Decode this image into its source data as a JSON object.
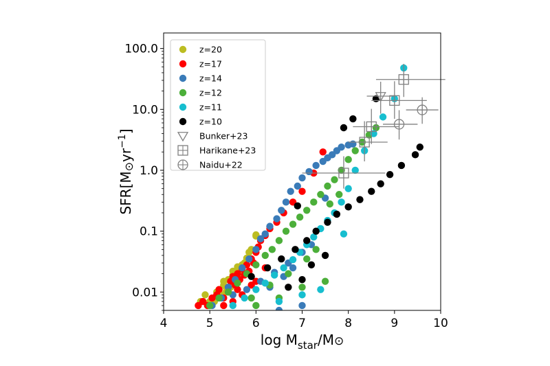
{
  "chart_data": {
    "type": "scatter",
    "xlabel": "log M",
    "xlabel_sub": "star",
    "xlabel_tail": "/M",
    "xlabel_sym": "⊙",
    "ylabel": "SFR[M",
    "ylabel_sym": "⊙",
    "ylabel_tail": "yr",
    "ylabel_sup": "−1",
    "ylabel_close": "]",
    "xlim": [
      4,
      10
    ],
    "ylim": [
      0.005,
      180
    ],
    "yscale": "log",
    "x_ticks": [
      4,
      5,
      6,
      7,
      8,
      9,
      10
    ],
    "x_tick_labels": [
      "4",
      "5",
      "6",
      "7",
      "8",
      "9",
      "10"
    ],
    "y_ticks": [
      0.01,
      0.1,
      1.0,
      10.0,
      100.0
    ],
    "y_tick_labels": [
      "0.01",
      "0.1",
      "1.0",
      "10.0",
      "100.0"
    ],
    "legend_position": "upper-left",
    "series": [
      {
        "name": "z=20",
        "color": "#bcbd22",
        "marker": "circle",
        "x": [
          4.8,
          4.9,
          5.0,
          5.1,
          5.2,
          5.25,
          5.3,
          5.35,
          5.4,
          5.45,
          5.5,
          5.55,
          5.6,
          5.65,
          5.7,
          5.75,
          5.8,
          5.85,
          5.9,
          6.0,
          6.0,
          5.0,
          5.15,
          5.3,
          5.5,
          5.6,
          5.1,
          5.35
        ],
        "y": [
          0.007,
          0.009,
          0.006,
          0.008,
          0.011,
          0.009,
          0.013,
          0.01,
          0.016,
          0.012,
          0.019,
          0.014,
          0.024,
          0.02,
          0.028,
          0.03,
          0.036,
          0.045,
          0.05,
          0.083,
          0.087,
          0.007,
          0.01,
          0.015,
          0.022,
          0.026,
          0.007,
          0.012
        ]
      },
      {
        "name": "z=17",
        "color": "#ff0000",
        "marker": "circle",
        "x": [
          4.75,
          4.85,
          4.95,
          5.05,
          5.15,
          5.2,
          5.3,
          5.4,
          5.45,
          5.5,
          5.55,
          5.6,
          5.65,
          5.7,
          5.75,
          5.8,
          5.85,
          5.9,
          5.95,
          6.0,
          6.05,
          6.1,
          6.2,
          6.3,
          6.45,
          6.6,
          6.8,
          7.0,
          7.25,
          7.45,
          5.3,
          5.5,
          5.7,
          5.4,
          5.6,
          5.9,
          6.0,
          6.2
        ],
        "y": [
          0.006,
          0.007,
          0.006,
          0.008,
          0.009,
          0.011,
          0.008,
          0.012,
          0.015,
          0.018,
          0.013,
          0.02,
          0.016,
          0.024,
          0.019,
          0.028,
          0.022,
          0.035,
          0.03,
          0.045,
          0.055,
          0.07,
          0.085,
          0.11,
          0.14,
          0.2,
          0.3,
          0.45,
          0.9,
          2.0,
          0.006,
          0.007,
          0.009,
          0.01,
          0.011,
          0.013,
          0.015,
          0.025
        ]
      },
      {
        "name": "z=14",
        "color": "#3a7bb8",
        "marker": "circle",
        "x": [
          5.05,
          5.25,
          5.4,
          5.55,
          5.7,
          5.85,
          6.0,
          6.1,
          6.2,
          6.3,
          6.45,
          6.55,
          6.65,
          6.75,
          6.9,
          7.0,
          7.15,
          7.3,
          7.45,
          7.55,
          7.65,
          7.75,
          7.85,
          8.0,
          8.1,
          5.5,
          5.8,
          6.1,
          6.4,
          6.7,
          7.0,
          7.2,
          6.3,
          6.6,
          6.8,
          7.5,
          6.5,
          7.0
        ],
        "y": [
          0.006,
          0.008,
          0.012,
          0.016,
          0.025,
          0.035,
          0.05,
          0.075,
          0.09,
          0.12,
          0.16,
          0.22,
          0.3,
          0.45,
          0.55,
          0.75,
          0.95,
          1.2,
          1.4,
          1.6,
          1.8,
          2.1,
          2.4,
          2.6,
          2.7,
          0.009,
          0.011,
          0.015,
          0.021,
          0.03,
          0.045,
          0.06,
          0.012,
          0.018,
          0.025,
          0.35,
          0.005,
          0.006
        ]
      },
      {
        "name": "z=12",
        "color": "#4caf3a",
        "marker": "circle",
        "x": [
          5.0,
          5.2,
          5.4,
          5.6,
          5.8,
          6.0,
          6.2,
          6.35,
          6.5,
          6.65,
          6.8,
          6.95,
          7.1,
          7.25,
          7.4,
          7.55,
          7.7,
          7.85,
          8.0,
          8.15,
          8.3,
          8.45,
          8.6,
          5.9,
          6.3,
          6.7,
          7.1,
          7.3,
          7.6,
          7.8,
          6.0,
          6.5,
          7.0,
          7.5
        ],
        "y": [
          0.006,
          0.008,
          0.01,
          0.014,
          0.02,
          0.028,
          0.04,
          0.05,
          0.07,
          0.1,
          0.13,
          0.17,
          0.22,
          0.3,
          0.4,
          0.55,
          0.7,
          1.0,
          1.5,
          2.1,
          2.9,
          3.8,
          5.0,
          0.008,
          0.013,
          0.02,
          0.035,
          0.05,
          0.28,
          0.4,
          0.006,
          0.008,
          0.012,
          0.015
        ]
      },
      {
        "name": "z=11",
        "color": "#17becf",
        "marker": "circle",
        "x": [
          5.5,
          5.75,
          6.0,
          6.2,
          6.4,
          6.6,
          6.8,
          6.95,
          7.1,
          7.25,
          7.4,
          7.55,
          7.7,
          7.85,
          8.0,
          8.15,
          8.35,
          8.55,
          8.75,
          9.0,
          9.2,
          7.9,
          6.5,
          7.0,
          7.4
        ],
        "y": [
          0.006,
          0.008,
          0.011,
          0.014,
          0.019,
          0.025,
          0.034,
          0.045,
          0.06,
          0.08,
          0.11,
          0.15,
          0.2,
          0.3,
          0.5,
          1.0,
          2.1,
          4.0,
          7.5,
          15,
          48,
          0.09,
          0.007,
          0.009,
          0.011
        ]
      },
      {
        "name": "z=10",
        "color": "#000000",
        "marker": "circle",
        "x": [
          5.9,
          6.25,
          6.55,
          6.85,
          7.1,
          7.3,
          7.55,
          7.75,
          8.0,
          8.25,
          8.5,
          8.7,
          8.9,
          9.15,
          9.45,
          9.55,
          6.7,
          7.0,
          7.2,
          7.5,
          7.9,
          8.1,
          8.6,
          6.9
        ],
        "y": [
          0.018,
          0.025,
          0.035,
          0.05,
          0.07,
          0.1,
          0.14,
          0.19,
          0.25,
          0.33,
          0.45,
          0.6,
          0.85,
          1.2,
          1.8,
          2.4,
          0.012,
          0.016,
          0.028,
          0.04,
          5.0,
          7.0,
          15,
          0.26
        ]
      },
      {
        "name": "Bunker+23",
        "color": "#808080",
        "marker": "triangle-down",
        "points": [
          {
            "x": 8.7,
            "y": 16.5,
            "xerr": [
              0.3,
              0.3
            ],
            "yerr": [
              8,
              12
            ]
          }
        ]
      },
      {
        "name": "Harikane+23",
        "color": "#808080",
        "marker": "square-plus",
        "points": [
          {
            "x": 7.9,
            "y": 0.9,
            "xerr": [
              0.9,
              0.9
            ],
            "yerr": [
              0.4,
              0.8
            ]
          },
          {
            "x": 8.35,
            "y": 2.9,
            "xerr": [
              0.35,
              0.5
            ],
            "yerr": [
              1.5,
              3.5
            ]
          },
          {
            "x": 8.5,
            "y": 5.2,
            "xerr": [
              0.4,
              0.6
            ],
            "yerr": [
              2.5,
              5
            ]
          },
          {
            "x": 9.0,
            "y": 14,
            "xerr": [
              0.5,
              0.7
            ],
            "yerr": [
              7,
              15
            ]
          },
          {
            "x": 9.2,
            "y": 31,
            "xerr": [
              0.6,
              0.9
            ],
            "yerr": [
              15,
              25
            ]
          }
        ]
      },
      {
        "name": "Naidu+22",
        "color": "#808080",
        "marker": "circle-plus",
        "points": [
          {
            "x": 9.1,
            "y": 5.7,
            "xerr": [
              0.35,
              0.4
            ],
            "yerr": [
              2.5,
              4
            ]
          },
          {
            "x": 9.6,
            "y": 9.8,
            "xerr": [
              0.35,
              0.35
            ],
            "yerr": [
              4,
              6
            ]
          }
        ]
      }
    ]
  }
}
